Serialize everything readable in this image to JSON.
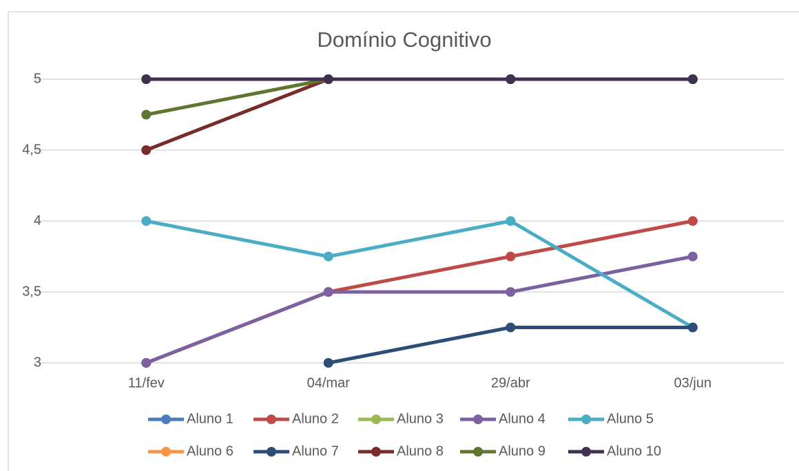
{
  "chart_data": {
    "type": "line",
    "title": "Domínio Cognitivo",
    "categories": [
      "11/fev",
      "04/mar",
      "29/abr",
      "03/jun"
    ],
    "series": [
      {
        "name": "Aluno 1",
        "color": "#4a7ebb",
        "values": [
          5,
          5,
          5,
          5
        ]
      },
      {
        "name": "Aluno 2",
        "color": "#be4b48",
        "values": [
          3,
          3.5,
          3.75,
          4
        ]
      },
      {
        "name": "Aluno 3",
        "color": "#98b954",
        "values": [
          5,
          5,
          5,
          5
        ]
      },
      {
        "name": "Aluno 4",
        "color": "#7d60a0",
        "values": [
          3,
          3.5,
          3.5,
          3.75
        ]
      },
      {
        "name": "Aluno 5",
        "color": "#4bacc6",
        "values": [
          4,
          3.75,
          4,
          3.25
        ]
      },
      {
        "name": "Aluno 6",
        "color": "#f79646",
        "values": [
          5,
          5,
          5,
          5
        ]
      },
      {
        "name": "Aluno 7",
        "color": "#2c4d75",
        "values": [
          null,
          3,
          3.25,
          3.25
        ]
      },
      {
        "name": "Aluno 8",
        "color": "#772c2a",
        "values": [
          4.5,
          5,
          5,
          5
        ]
      },
      {
        "name": "Aluno 9",
        "color": "#5f7530",
        "values": [
          4.75,
          5,
          5,
          5
        ]
      },
      {
        "name": "Aluno 10",
        "color": "#403152",
        "values": [
          5,
          5,
          5,
          5
        ]
      }
    ],
    "ylim": [
      3,
      5
    ],
    "yticks": [
      3,
      {
        "value": 3.5,
        "label": "3,5"
      },
      4,
      {
        "value": 4.5,
        "label": "4,5"
      },
      5
    ],
    "grid": true,
    "legend": "bottom"
  }
}
